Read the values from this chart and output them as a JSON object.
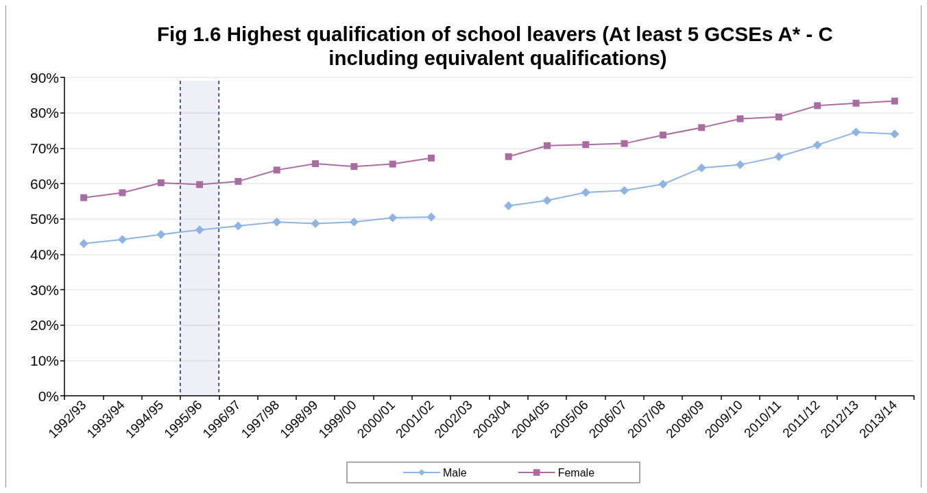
{
  "chart_data": {
    "type": "line",
    "title": "Fig 1.6 Highest qualification of school leavers (At least 5 GCSEs A* - C including equivalent qualifications)",
    "categories": [
      "1992/93",
      "1993/94",
      "1994/95",
      "1995/96",
      "1996/97",
      "1997/98",
      "1998/99",
      "1999/00",
      "2000/01",
      "2001/02",
      "2002/03",
      "2003/04",
      "2004/05",
      "2005/06",
      "2006/07",
      "2007/08",
      "2008/09",
      "2009/10",
      "2010/11",
      "2011/12",
      "2012/13",
      "2013/14"
    ],
    "series": [
      {
        "name": "Male",
        "color": "#8db4e2",
        "marker": "diamond",
        "values": [
          43.0,
          44.2,
          45.6,
          46.9,
          48.0,
          49.1,
          48.7,
          49.1,
          50.3,
          50.5,
          null,
          53.7,
          55.2,
          57.5,
          58.0,
          59.8,
          64.4,
          65.3,
          67.6,
          70.9,
          74.5,
          74.0
        ]
      },
      {
        "name": "Female",
        "color": "#aa6ca0",
        "marker": "square",
        "values": [
          56.0,
          57.4,
          60.2,
          59.7,
          60.6,
          63.8,
          65.6,
          64.8,
          65.5,
          67.2,
          null,
          67.6,
          70.7,
          71.0,
          71.3,
          73.7,
          75.8,
          78.3,
          78.8,
          82.0,
          82.7,
          83.3
        ]
      }
    ],
    "ylim": [
      0,
      90
    ],
    "yticks": [
      {
        "value": 0,
        "label": "0%"
      },
      {
        "value": 10,
        "label": "10%"
      },
      {
        "value": 20,
        "label": "20%"
      },
      {
        "value": 30,
        "label": "30%"
      },
      {
        "value": 40,
        "label": "40%"
      },
      {
        "value": 50,
        "label": "50%"
      },
      {
        "value": 60,
        "label": "60%"
      },
      {
        "value": 70,
        "label": "70%"
      },
      {
        "value": 80,
        "label": "80%"
      },
      {
        "value": 90,
        "label": "90%"
      }
    ],
    "grid": "y",
    "legend": "bottom",
    "bands": [
      {
        "axis": "x",
        "from": "1995/96",
        "to": "1995/96",
        "color": "#14296b"
      }
    ]
  }
}
